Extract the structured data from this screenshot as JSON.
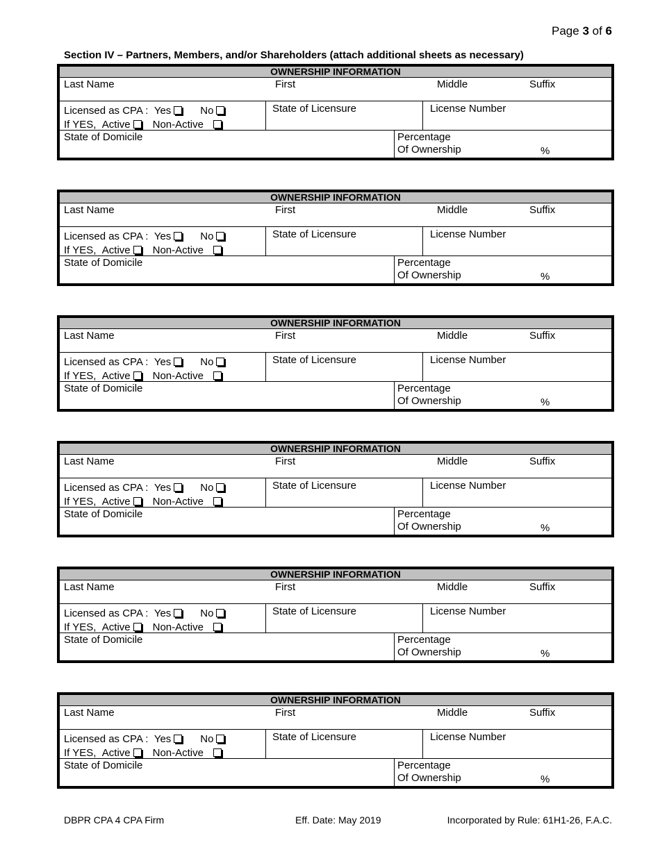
{
  "page": {
    "prefix": "Page ",
    "current": "3",
    "of": " of ",
    "total": "6"
  },
  "section_title": "Section IV – Partners, Members, and/or Shareholders (attach additional sheets as necessary)",
  "block": {
    "header": "OWNERSHIP INFORMATION",
    "last_name": "Last Name",
    "first": "First",
    "middle": "Middle",
    "suffix": "Suffix",
    "licensed_as_cpa": "Licensed as CPA :",
    "yes": "Yes",
    "no": "No",
    "if_yes": "If YES,",
    "active": "Active",
    "non_active": "Non-Active",
    "state_of_licensure": "State of Licensure",
    "license_number": "License Number",
    "state_of_domicile": "State of Domicile",
    "percentage": "Percentage",
    "of_ownership": "Of Ownership",
    "percent_sign": "%"
  },
  "block_count": 6,
  "footer": {
    "form": "DBPR CPA 4 CPA Firm",
    "eff_date": "Eff. Date: May 2019",
    "rule": "Incorporated by Rule:  61H1-26, F.A.C."
  }
}
